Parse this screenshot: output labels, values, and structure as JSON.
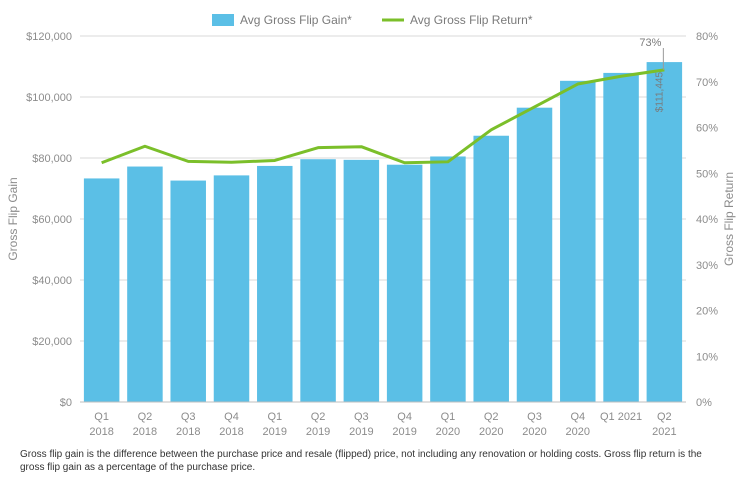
{
  "chart_data": {
    "type": "bar",
    "title": "",
    "categories": [
      [
        "Q1",
        "2018"
      ],
      [
        "Q2",
        "2018"
      ],
      [
        "Q3",
        "2018"
      ],
      [
        "Q4",
        "2018"
      ],
      [
        "Q1",
        "2019"
      ],
      [
        "Q2",
        "2019"
      ],
      [
        "Q3",
        "2019"
      ],
      [
        "Q4",
        "2019"
      ],
      [
        "Q1",
        "2020"
      ],
      [
        "Q2",
        "2020"
      ],
      [
        "Q3",
        "2020"
      ],
      [
        "Q4",
        "2020"
      ],
      [
        "Q1 2021"
      ],
      [
        "Q2",
        "2021"
      ]
    ],
    "series": [
      {
        "name": "Avg Gross Flip Gain*",
        "type": "bar",
        "axis": "left",
        "color": "#5bbfe6",
        "values": [
          73300,
          77200,
          72600,
          74300,
          77400,
          79600,
          79400,
          77800,
          80500,
          87300,
          96500,
          105300,
          107900,
          111445
        ]
      },
      {
        "name": "Avg Gross Flip Return*",
        "type": "line",
        "axis": "right",
        "color": "#7bbf2a",
        "values": [
          52.3,
          55.9,
          52.6,
          52.4,
          52.8,
          55.6,
          55.8,
          52.3,
          52.5,
          59.5,
          64.5,
          69.5,
          71.2,
          72.6
        ]
      }
    ],
    "ylabel": "Gross Flip Gain",
    "ylabel_right": "Gross Flip Return",
    "ylim": [
      0,
      120000
    ],
    "ylim_right": [
      0,
      80
    ],
    "yticks": [
      "$0",
      "$20,000",
      "$40,000",
      "$60,000",
      "$80,000",
      "$100,000",
      "$120,000"
    ],
    "yticks_right": [
      "0%",
      "10%",
      "20%",
      "30%",
      "40%",
      "50%",
      "60%",
      "70%",
      "80%"
    ],
    "annotations": {
      "last_bar_label": "$111,445",
      "last_point_label": "73%"
    },
    "legend_position": "top"
  },
  "footnote": "Gross flip gain is the difference between the purchase price and resale (flipped) price, not including any renovation or holding costs. Gross flip return is the gross flip gain as a percentage of the purchase price."
}
